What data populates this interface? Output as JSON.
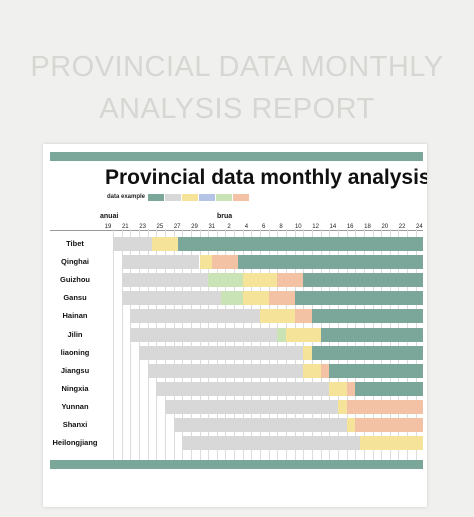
{
  "banner": {
    "title": "PROVINCIAL DATA MONTHLY ANALYSIS REPORT"
  },
  "sheet": {
    "title": "Provincial data monthly analysis report",
    "legend_label": "data example",
    "legend_colors": [
      "#7aa79a",
      "#d8d8d8",
      "#f6e39a",
      "#b4c3e6",
      "#c9e3b7",
      "#f3c2a4"
    ],
    "month_labels": [
      "anuai",
      "brua"
    ],
    "days": [
      "19",
      "21",
      "23",
      "25",
      "27",
      "29",
      "31",
      "2",
      "4",
      "6",
      "8",
      "10",
      "12",
      "14",
      "16",
      "18",
      "20",
      "22",
      "24"
    ]
  },
  "colors": {
    "teal": "#7aa79a",
    "gray": "#d8d8d8",
    "yellow": "#f6e39a",
    "green": "#c9e3b7",
    "orange": "#f3c2a4"
  },
  "provinces": [
    {
      "name": "Tibet",
      "bars": [
        [
          "gray",
          0,
          4.5
        ],
        [
          "yellow",
          4.5,
          7.5
        ],
        [
          "teal",
          7.5,
          36
        ]
      ]
    },
    {
      "name": "Qinghai",
      "bars": [
        [
          "gray",
          1,
          10
        ],
        [
          "yellow",
          10,
          11.5
        ],
        [
          "orange",
          11.5,
          14.5
        ],
        [
          "teal",
          14.5,
          36
        ]
      ]
    },
    {
      "name": "Guizhou",
      "bars": [
        [
          "gray",
          1,
          11
        ],
        [
          "green",
          11,
          15
        ],
        [
          "yellow",
          15,
          19
        ],
        [
          "orange",
          19,
          22
        ],
        [
          "teal",
          22,
          36
        ]
      ]
    },
    {
      "name": "Gansu",
      "bars": [
        [
          "gray",
          1,
          12.5
        ],
        [
          "green",
          12.5,
          15
        ],
        [
          "yellow",
          15,
          18
        ],
        [
          "orange",
          18,
          21
        ],
        [
          "teal",
          21,
          36
        ]
      ]
    },
    {
      "name": "Hainan",
      "bars": [
        [
          "gray",
          2,
          17
        ],
        [
          "yellow",
          17,
          21
        ],
        [
          "orange",
          21,
          23
        ],
        [
          "teal",
          23,
          36
        ]
      ]
    },
    {
      "name": "Jilin",
      "bars": [
        [
          "gray",
          2,
          19
        ],
        [
          "green",
          19,
          20
        ],
        [
          "yellow",
          20,
          24
        ],
        [
          "teal",
          24,
          36
        ]
      ]
    },
    {
      "name": "liaoning",
      "bars": [
        [
          "gray",
          3,
          22
        ],
        [
          "yellow",
          22,
          23
        ],
        [
          "teal",
          23,
          36
        ]
      ]
    },
    {
      "name": "Jiangsu",
      "bars": [
        [
          "gray",
          4,
          22
        ],
        [
          "yellow",
          22,
          24
        ],
        [
          "orange",
          24,
          25
        ],
        [
          "teal",
          25,
          36
        ]
      ]
    },
    {
      "name": "Ningxia",
      "bars": [
        [
          "gray",
          5,
          25
        ],
        [
          "yellow",
          25,
          27
        ],
        [
          "orange",
          27,
          28
        ],
        [
          "teal",
          28,
          36
        ]
      ]
    },
    {
      "name": "Yunnan",
      "bars": [
        [
          "gray",
          6,
          26
        ],
        [
          "yellow",
          26,
          27
        ],
        [
          "orange",
          27,
          36
        ]
      ]
    },
    {
      "name": "Shanxi",
      "bars": [
        [
          "gray",
          7,
          27
        ],
        [
          "yellow",
          27,
          28
        ],
        [
          "orange",
          28,
          36
        ]
      ]
    },
    {
      "name": "Heilongjiang",
      "bars": [
        [
          "gray",
          8,
          28.5
        ],
        [
          "yellow",
          28.5,
          36
        ]
      ]
    }
  ]
}
